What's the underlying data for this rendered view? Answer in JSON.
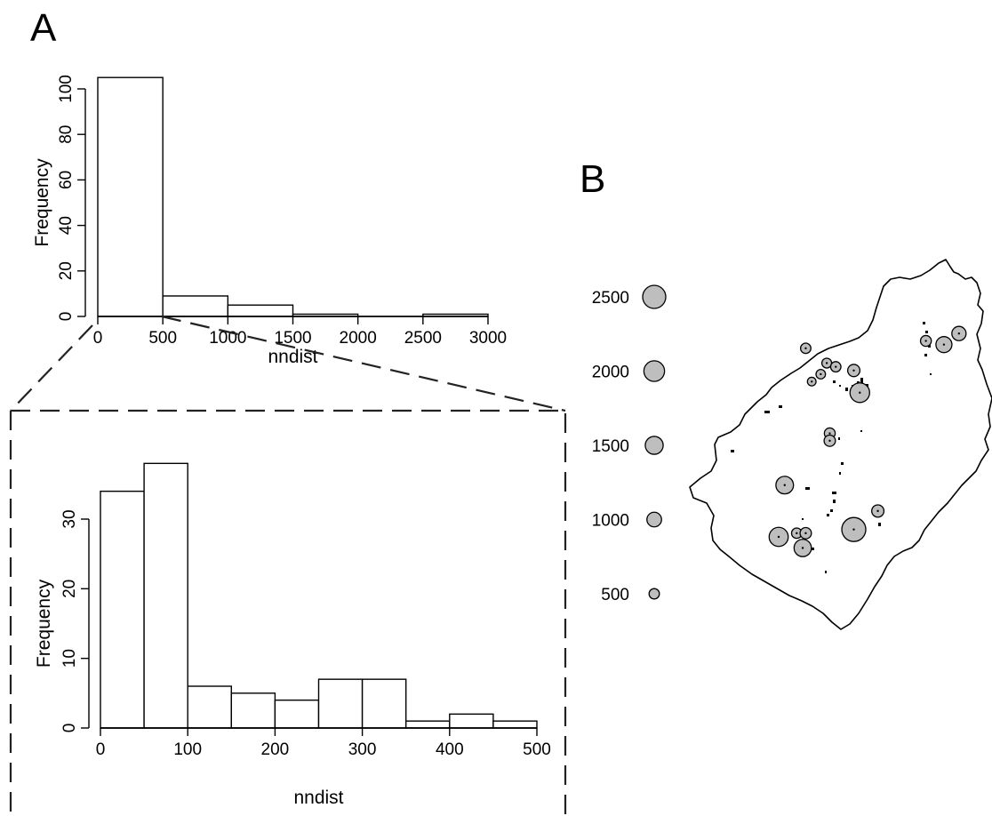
{
  "panels": {
    "a_label": "A",
    "b_label": "B"
  },
  "chart_data": [
    {
      "type": "bar",
      "panel": "A",
      "title": "",
      "xlabel": "nndist",
      "ylabel": "Frequency",
      "bin_edges": [
        0,
        500,
        1000,
        1500,
        2000,
        2500,
        3000
      ],
      "values": [
        105,
        9,
        5,
        1,
        0,
        1
      ],
      "xlim": [
        0,
        3000
      ],
      "ylim": [
        0,
        100
      ],
      "xticks": [
        0,
        500,
        1000,
        1500,
        2000,
        2500,
        3000
      ],
      "yticks": [
        0,
        20,
        40,
        60,
        80,
        100
      ],
      "grid": false
    },
    {
      "type": "bar",
      "panel": "A-inset",
      "title": "",
      "xlabel": "nndist",
      "ylabel": "Frequency",
      "bin_edges": [
        0,
        50,
        100,
        150,
        200,
        250,
        300,
        350,
        400,
        450,
        500
      ],
      "values": [
        34,
        38,
        6,
        5,
        4,
        7,
        7,
        1,
        2,
        1
      ],
      "xlim": [
        0,
        500
      ],
      "ylim": [
        0,
        30
      ],
      "xticks": [
        0,
        100,
        200,
        300,
        400,
        500
      ],
      "yticks": [
        0,
        10,
        20,
        30
      ],
      "grid": false
    },
    {
      "type": "scatter",
      "panel": "B",
      "title": "",
      "legend_position": "left",
      "size_legend": [
        2500,
        2000,
        1500,
        1000,
        500
      ],
      "bubble_color": "#bebebe",
      "points": [
        {
          "x": 0.38,
          "y": 0.24,
          "v": 500
        },
        {
          "x": 0.45,
          "y": 0.28,
          "v": 450
        },
        {
          "x": 0.48,
          "y": 0.29,
          "v": 500
        },
        {
          "x": 0.54,
          "y": 0.3,
          "v": 700
        },
        {
          "x": 0.56,
          "y": 0.36,
          "v": 1800
        },
        {
          "x": 0.43,
          "y": 0.31,
          "v": 420
        },
        {
          "x": 0.4,
          "y": 0.33,
          "v": 350
        },
        {
          "x": 0.78,
          "y": 0.22,
          "v": 550
        },
        {
          "x": 0.84,
          "y": 0.23,
          "v": 1200
        },
        {
          "x": 0.89,
          "y": 0.2,
          "v": 950
        },
        {
          "x": 0.46,
          "y": 0.47,
          "v": 550
        },
        {
          "x": 0.46,
          "y": 0.49,
          "v": 600
        },
        {
          "x": 0.31,
          "y": 0.61,
          "v": 1450
        },
        {
          "x": 0.54,
          "y": 0.73,
          "v": 2700
        },
        {
          "x": 0.62,
          "y": 0.68,
          "v": 700
        },
        {
          "x": 0.29,
          "y": 0.75,
          "v": 1700
        },
        {
          "x": 0.35,
          "y": 0.74,
          "v": 500
        },
        {
          "x": 0.38,
          "y": 0.74,
          "v": 600
        },
        {
          "x": 0.37,
          "y": 0.78,
          "v": 1400
        }
      ]
    }
  ]
}
